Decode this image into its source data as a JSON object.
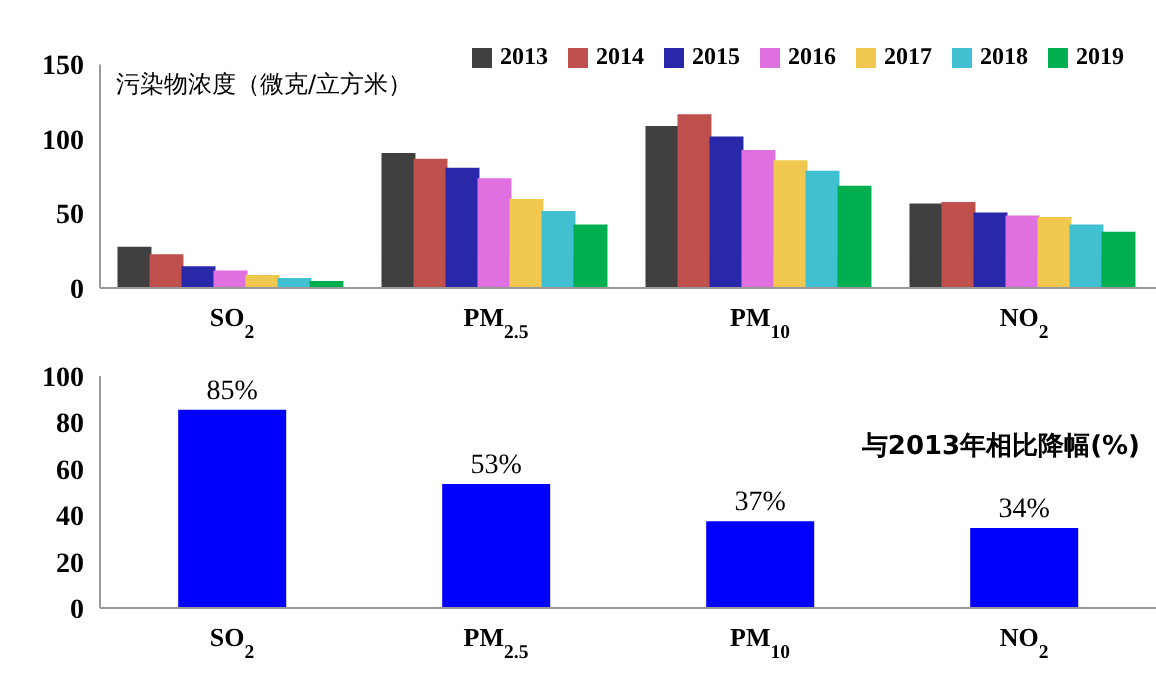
{
  "chart_data": [
    {
      "type": "bar",
      "title": "污染物浓度（微克/立方米）",
      "categories": [
        "SO$_{2}$",
        "PM$_{2.5}$",
        "PM$_{10}$",
        "NO$_{2}$"
      ],
      "series": [
        {
          "name": "2013",
          "color": "#404040",
          "values": [
            27,
            90,
            108,
            56
          ]
        },
        {
          "name": "2014",
          "color": "#c0504d",
          "values": [
            22,
            86,
            116,
            57
          ]
        },
        {
          "name": "2015",
          "color": "#2828a8",
          "values": [
            14,
            80,
            101,
            50
          ]
        },
        {
          "name": "2016",
          "color": "#e070e0",
          "values": [
            11,
            73,
            92,
            48
          ]
        },
        {
          "name": "2017",
          "color": "#f0c850",
          "values": [
            8,
            59,
            85,
            47
          ]
        },
        {
          "name": "2018",
          "color": "#40c0d0",
          "values": [
            6,
            51,
            78,
            42
          ]
        },
        {
          "name": "2019",
          "color": "#00b050",
          "values": [
            4,
            42,
            68,
            37
          ]
        }
      ],
      "ylim": [
        0,
        150
      ],
      "yticks": [
        0,
        50,
        100,
        150
      ],
      "legend": "top right"
    },
    {
      "type": "bar",
      "categories": [
        "SO$_{2}$",
        "PM$_{2.5}$",
        "PM$_{10}$",
        "NO$_{2}$"
      ],
      "values": [
        85,
        53,
        37,
        34
      ],
      "value_labels": [
        "85%",
        "53%",
        "37%",
        "34%"
      ],
      "color": "#0000ff",
      "ylim": [
        0,
        100
      ],
      "yticks": [
        0,
        20,
        40,
        60,
        80,
        100
      ],
      "legend": false,
      "annotations": [
        "与2013年相比降幅(%)"
      ]
    }
  ]
}
